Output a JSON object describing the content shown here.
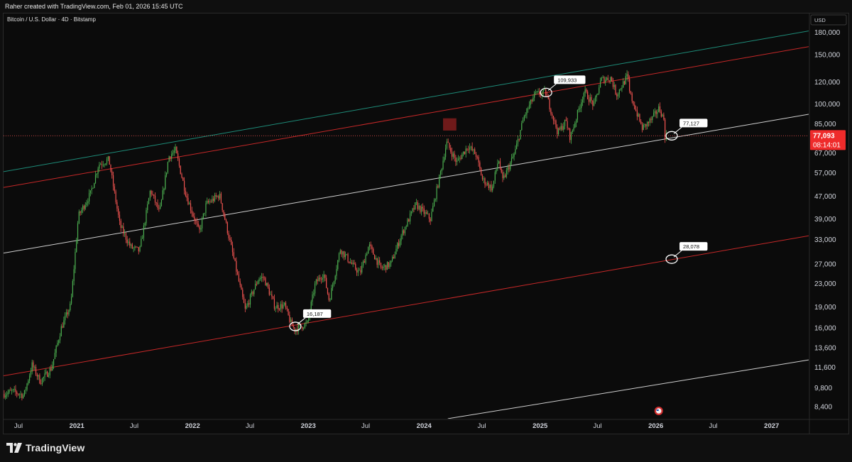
{
  "header": {
    "created_by": "Raher created with TradingView.com, Feb 01, 2026 15:45 UTC"
  },
  "brand": {
    "name": "TradingView"
  },
  "chart_data": {
    "type": "candlestick",
    "title": "Bitcoin / U.S. Dollar · 4D · Bitstamp",
    "currency": "USD",
    "scale": "log",
    "ylim": [
      7600,
      210000
    ],
    "xlim": [
      "2020-05-15",
      "2027-04-28"
    ],
    "y_ticks": [
      {
        "value": 180000,
        "label": "180,000"
      },
      {
        "value": 150000,
        "label": "150,000"
      },
      {
        "value": 120000,
        "label": "120,000"
      },
      {
        "value": 100000,
        "label": "100,000"
      },
      {
        "value": 85000,
        "label": "85,000"
      },
      {
        "value": 57000,
        "label": "57,000"
      },
      {
        "value": 47000,
        "label": "47,000"
      },
      {
        "value": 39000,
        "label": "39,000"
      },
      {
        "value": 33000,
        "label": "33,000"
      },
      {
        "value": 27000,
        "label": "27,000"
      },
      {
        "value": 23000,
        "label": "23,000"
      },
      {
        "value": 19000,
        "label": "19,000"
      },
      {
        "value": 16000,
        "label": "16,000"
      },
      {
        "value": 13600,
        "label": "13,600"
      },
      {
        "value": 11600,
        "label": "11,600"
      },
      {
        "value": 9800,
        "label": "9,800"
      },
      {
        "value": 8400,
        "label": "8,400"
      }
    ],
    "x_ticks": [
      {
        "date": "2020-07-01",
        "label": "Jul",
        "bold": false
      },
      {
        "date": "2021-01-01",
        "label": "2021",
        "bold": true
      },
      {
        "date": "2021-07-01",
        "label": "Jul",
        "bold": false
      },
      {
        "date": "2022-01-01",
        "label": "2022",
        "bold": true
      },
      {
        "date": "2022-07-01",
        "label": "Jul",
        "bold": false
      },
      {
        "date": "2023-01-01",
        "label": "2023",
        "bold": true
      },
      {
        "date": "2023-07-01",
        "label": "Jul",
        "bold": false
      },
      {
        "date": "2024-01-01",
        "label": "2024",
        "bold": true
      },
      {
        "date": "2024-07-01",
        "label": "Jul",
        "bold": false
      },
      {
        "date": "2025-01-01",
        "label": "2025",
        "bold": true
      },
      {
        "date": "2025-07-01",
        "label": "Jul",
        "bold": false
      },
      {
        "date": "2026-01-01",
        "label": "2026",
        "bold": true
      },
      {
        "date": "2026-07-01",
        "label": "Jul",
        "bold": false
      },
      {
        "date": "2027-01-01",
        "label": "2027",
        "bold": true
      }
    ],
    "price_path": [
      [
        "2020-05-15",
        9300
      ],
      [
        "2020-06-15",
        9500
      ],
      [
        "2020-07-20",
        9200
      ],
      [
        "2020-08-15",
        11800
      ],
      [
        "2020-09-10",
        10300
      ],
      [
        "2020-10-15",
        11500
      ],
      [
        "2020-11-15",
        16000
      ],
      [
        "2020-12-15",
        19300
      ],
      [
        "2021-01-08",
        40000
      ],
      [
        "2021-02-15",
        48000
      ],
      [
        "2021-03-13",
        61000
      ],
      [
        "2021-04-14",
        63500
      ],
      [
        "2021-05-19",
        37000
      ],
      [
        "2021-06-22",
        31000
      ],
      [
        "2021-07-20",
        30000
      ],
      [
        "2021-08-23",
        49500
      ],
      [
        "2021-09-21",
        41000
      ],
      [
        "2021-10-20",
        65000
      ],
      [
        "2021-11-10",
        68500
      ],
      [
        "2021-12-15",
        47000
      ],
      [
        "2022-01-24",
        35000
      ],
      [
        "2022-02-15",
        44000
      ],
      [
        "2022-03-29",
        47500
      ],
      [
        "2022-05-12",
        28500
      ],
      [
        "2022-06-18",
        18500
      ],
      [
        "2022-07-30",
        24000
      ],
      [
        "2022-08-15",
        24200
      ],
      [
        "2022-09-20",
        19000
      ],
      [
        "2022-10-20",
        19200
      ],
      [
        "2022-11-10",
        16500
      ],
      [
        "2022-11-21",
        15800
      ],
      [
        "2022-12-31",
        16600
      ],
      [
        "2023-01-25",
        23000
      ],
      [
        "2023-02-20",
        25000
      ],
      [
        "2023-03-10",
        20000
      ],
      [
        "2023-04-14",
        30500
      ],
      [
        "2023-05-25",
        26500
      ],
      [
        "2023-06-15",
        25000
      ],
      [
        "2023-07-13",
        31500
      ],
      [
        "2023-08-20",
        26000
      ],
      [
        "2023-09-20",
        27000
      ],
      [
        "2023-10-25",
        34500
      ],
      [
        "2023-12-08",
        44000
      ],
      [
        "2024-01-23",
        39000
      ],
      [
        "2024-02-28",
        60000
      ],
      [
        "2024-03-14",
        73000
      ],
      [
        "2024-04-15",
        62000
      ],
      [
        "2024-05-21",
        71000
      ],
      [
        "2024-06-15",
        66000
      ],
      [
        "2024-07-05",
        54000
      ],
      [
        "2024-08-05",
        50000
      ],
      [
        "2024-08-25",
        64000
      ],
      [
        "2024-09-06",
        53000
      ],
      [
        "2024-10-15",
        67000
      ],
      [
        "2024-11-13",
        90000
      ],
      [
        "2024-12-17",
        108000
      ],
      [
        "2025-01-20",
        109933
      ],
      [
        "2025-02-28",
        79000
      ],
      [
        "2025-03-25",
        87000
      ],
      [
        "2025-04-08",
        76000
      ],
      [
        "2025-05-22",
        111000
      ],
      [
        "2025-06-22",
        99000
      ],
      [
        "2025-07-14",
        122000
      ],
      [
        "2025-08-14",
        124000
      ],
      [
        "2025-09-01",
        108000
      ],
      [
        "2025-10-06",
        126000
      ],
      [
        "2025-10-12",
        110000
      ],
      [
        "2025-11-21",
        82000
      ],
      [
        "2025-12-20",
        88000
      ],
      [
        "2026-01-14",
        97000
      ],
      [
        "2026-01-28",
        88000
      ],
      [
        "2026-02-01",
        77093
      ]
    ],
    "highlight_zone": {
      "from": "2024-03-01",
      "to": "2024-04-12"
    },
    "trend_lines": [
      {
        "name": "upper-green",
        "color": "#1e8c79",
        "points": [
          [
            "2020-05-15",
            57500
          ],
          [
            "2027-04-28",
            182000
          ]
        ]
      },
      {
        "name": "upper-red",
        "color": "#c62828",
        "points": [
          [
            "2020-05-15",
            50500
          ],
          [
            "2027-04-28",
            160000
          ]
        ]
      },
      {
        "name": "middle-white",
        "color": "#d0d0d0",
        "points": [
          [
            "2020-05-15",
            29500
          ],
          [
            "2027-04-28",
            92000
          ]
        ]
      },
      {
        "name": "lower-red",
        "color": "#c62828",
        "points": [
          [
            "2020-05-15",
            10800
          ],
          [
            "2027-04-28",
            34000
          ]
        ]
      },
      {
        "name": "bottom-white",
        "color": "#d0d0d0",
        "points": [
          [
            "2024-03-16",
            7600
          ],
          [
            "2027-04-28",
            12300
          ]
        ]
      }
    ],
    "annotations": [
      {
        "label": "16,187",
        "date": "2022-11-21",
        "value": 16187
      },
      {
        "label": "109,933",
        "date": "2025-01-20",
        "value": 109933
      },
      {
        "label": "77,127",
        "date": "2026-02-20",
        "value": 77127
      },
      {
        "label": "28,078",
        "date": "2026-02-20",
        "value": 28078
      }
    ],
    "last_price": {
      "value": 77093,
      "label": "77,093",
      "countdown": "08:14:01"
    },
    "price_partially_hidden_label": "67,000",
    "colors": {
      "up": "#4caf50",
      "down": "#ef5350",
      "background": "#0b0b0b",
      "axis_text": "#d1d4dc"
    },
    "grid": false
  }
}
